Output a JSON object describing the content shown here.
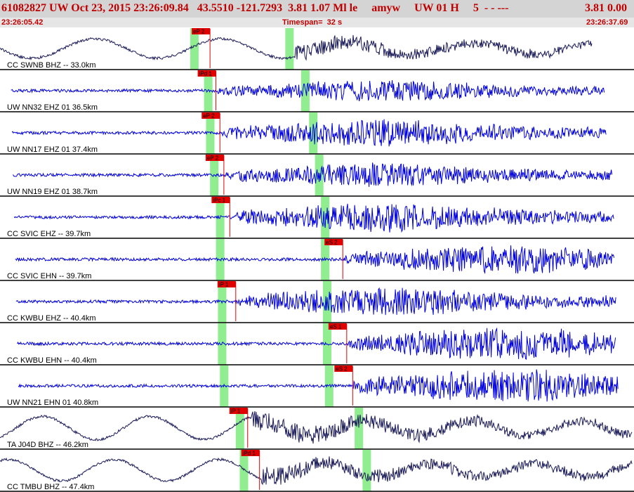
{
  "header": {
    "info": "61082827 UW Oct 23, 2015 23:26:09.84   43.5510 -121.7293  3.81 1.07 Ml le     amyw     UW 01 H     5  - - ---",
    "value": "3.81 0.00"
  },
  "time_axis": {
    "start": "23:26:05.42",
    "end": "23:26:37.69",
    "timespan": "Timespan=  32 s"
  },
  "colors": {
    "header_bg": "#d4d4d4",
    "header_text": "#c00000",
    "waveform_blue": "#0000dd",
    "waveform_dark": "#1c1c5a",
    "pick": "#e00000",
    "window": "#90ee90"
  },
  "chart_data": {
    "type": "line",
    "title": "",
    "xlabel": "",
    "ylabel": "",
    "xlim": [
      0,
      32
    ],
    "traces": [
      {
        "label": "CC SWNB BHZ -- 33.0km",
        "color": "dark",
        "picks": [
          {
            "label": "eP 2",
            "t": 10.6
          }
        ],
        "p_window": 9.6,
        "s_window": 14.4,
        "amp": 0.5,
        "onset": 14.9,
        "end": 29.9,
        "longperiod": true
      },
      {
        "label": "UW NN32 EHZ 01 36.5km",
        "color": "blue",
        "picks": [
          {
            "label": "iPd 1",
            "t": 10.9
          }
        ],
        "p_window": 10.3,
        "s_window": 15.2,
        "amp": 0.45,
        "onset": 11.0,
        "end": 30.5,
        "longperiod": false
      },
      {
        "label": "UW NN17 EHZ 01 37.4km",
        "color": "blue",
        "picks": [
          {
            "label": "eP 2",
            "t": 11.1
          }
        ],
        "p_window": 10.4,
        "s_window": 15.6,
        "amp": 0.55,
        "onset": 11.2,
        "end": 30.6,
        "longperiod": false
      },
      {
        "label": "UW NN19 EHZ 01 38.7km",
        "color": "blue",
        "picks": [
          {
            "label": "eP 2",
            "t": 11.3
          }
        ],
        "p_window": 10.6,
        "s_window": 15.9,
        "amp": 0.5,
        "onset": 11.4,
        "end": 30.9,
        "longperiod": false
      },
      {
        "label": "CC SVIC EHZ -- 39.7km",
        "color": "blue",
        "picks": [
          {
            "label": "iPc 1",
            "t": 11.6
          }
        ],
        "p_window": 10.9,
        "s_window": 16.2,
        "amp": 0.6,
        "onset": 11.6,
        "end": 31.0,
        "longperiod": false
      },
      {
        "label": "CC SVIC EHN -- 39.7km",
        "color": "blue",
        "picks": [
          {
            "label": "eS 2",
            "t": 17.3
          }
        ],
        "p_window": 10.9,
        "s_window": 16.2,
        "amp": 0.6,
        "onset": 17.4,
        "end": 31.0,
        "longperiod": false
      },
      {
        "label": "CC KWBU EHZ -- 40.4km",
        "color": "blue",
        "picks": [
          {
            "label": "iP 1",
            "t": 11.9
          }
        ],
        "p_window": 11.0,
        "s_window": 16.3,
        "amp": 0.6,
        "onset": 11.9,
        "end": 31.1,
        "longperiod": false
      },
      {
        "label": "CC KWBU EHN -- 40.4km",
        "color": "blue",
        "picks": [
          {
            "label": "eS 1",
            "t": 17.5
          }
        ],
        "p_window": 11.0,
        "s_window": 16.3,
        "amp": 0.7,
        "onset": 17.6,
        "end": 31.1,
        "longperiod": false
      },
      {
        "label": "UW NN21 EHN 01 40.8km",
        "color": "blue",
        "picks": [
          {
            "label": "eS 2",
            "t": 17.8
          }
        ],
        "p_window": 11.1,
        "s_window": 16.4,
        "amp": 0.7,
        "onset": 17.8,
        "end": 31.2,
        "longperiod": false
      },
      {
        "label": "TA J04D BHZ -- 46.2km",
        "color": "dark",
        "picks": [
          {
            "label": "iP 1",
            "t": 12.5
          }
        ],
        "p_window": 11.9,
        "s_window": 17.9,
        "amp": 0.6,
        "onset": 12.7,
        "end": 31.9,
        "longperiod": true
      },
      {
        "label": "CC TMBU BHZ -- 47.4km",
        "color": "dark",
        "picks": [
          {
            "label": "iPd 1",
            "t": 13.1
          }
        ],
        "p_window": 12.1,
        "s_window": 18.3,
        "amp": 0.55,
        "onset": 13.2,
        "end": 31.9,
        "longperiod": true
      }
    ]
  }
}
